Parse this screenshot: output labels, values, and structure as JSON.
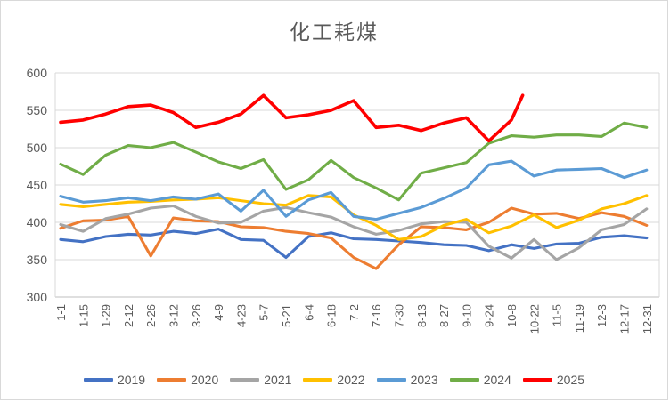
{
  "chart_data": {
    "type": "line",
    "title": "化工耗煤",
    "categories": [
      "1-1",
      "1-15",
      "1-29",
      "2-12",
      "2-26",
      "3-12",
      "3-26",
      "4-9",
      "4-23",
      "5-7",
      "5-21",
      "6-4",
      "6-18",
      "7-2",
      "7-16",
      "7-30",
      "8-13",
      "8-27",
      "9-10",
      "9-24",
      "10-8",
      "10-22",
      "11-5",
      "11-19",
      "12-3",
      "12-17",
      "12-31"
    ],
    "ylim": [
      300,
      600
    ],
    "ytick_step": 50,
    "y_tick_labels": [
      "600",
      "550",
      "500",
      "450",
      "400",
      "350",
      "300"
    ],
    "grid": true,
    "legend_position": "bottom",
    "series": [
      {
        "name": "2019",
        "color": "#4472C4",
        "values": [
          377,
          374,
          381,
          384,
          383,
          388,
          385,
          391,
          377,
          376,
          353,
          381,
          386,
          378,
          377,
          375,
          373,
          370,
          369,
          362,
          370,
          365,
          371,
          372,
          380,
          382,
          379
        ]
      },
      {
        "name": "2020",
        "color": "#ED7D31",
        "values": [
          392,
          402,
          403,
          408,
          355,
          406,
          402,
          401,
          394,
          393,
          388,
          385,
          379,
          353,
          338,
          370,
          394,
          393,
          390,
          400,
          419,
          411,
          412,
          405,
          413,
          408,
          396
        ]
      },
      {
        "name": "2021",
        "color": "#A5A5A5",
        "values": [
          397,
          388,
          405,
          411,
          419,
          422,
          408,
          399,
          400,
          415,
          420,
          413,
          407,
          394,
          384,
          389,
          398,
          401,
          400,
          368,
          352,
          377,
          350,
          366,
          390,
          397,
          418
        ]
      },
      {
        "name": "2022",
        "color": "#FFC000",
        "values": [
          424,
          421,
          424,
          427,
          428,
          430,
          431,
          433,
          429,
          425,
          423,
          436,
          434,
          410,
          396,
          377,
          381,
          396,
          404,
          386,
          395,
          410,
          393,
          403,
          418,
          425,
          436
        ]
      },
      {
        "name": "2023",
        "color": "#5B9BD5",
        "values": [
          435,
          427,
          429,
          433,
          429,
          434,
          431,
          438,
          415,
          443,
          408,
          430,
          440,
          408,
          404,
          412,
          420,
          432,
          446,
          477,
          482,
          462,
          470,
          471,
          472,
          460,
          470
        ]
      },
      {
        "name": "2024",
        "color": "#70AD47",
        "values": [
          478,
          464,
          490,
          503,
          500,
          507,
          494,
          481,
          472,
          484,
          444,
          457,
          483,
          460,
          446,
          430,
          466,
          473,
          480,
          506,
          516,
          514,
          517,
          517,
          515,
          533,
          527
        ]
      },
      {
        "name": "2025",
        "color": "#FF0000",
        "values": [
          534,
          537,
          545,
          555,
          557,
          547,
          527,
          534,
          545,
          570,
          540,
          544,
          550,
          563,
          527,
          530,
          523,
          533,
          540,
          509,
          537,
          570
        ],
        "x_indices": [
          0,
          1,
          2,
          3,
          4,
          5,
          6,
          7,
          8,
          9,
          10,
          11,
          12,
          13,
          14,
          15,
          16,
          17,
          18,
          19,
          20,
          20.5
        ]
      }
    ],
    "colors": {
      "title_text": "#595959",
      "axis_text": "#595959",
      "gridline": "#d9d9d9",
      "axis_line": "#bfbfbf",
      "plot_border": "#d9d9d9",
      "background": "#ffffff"
    }
  }
}
